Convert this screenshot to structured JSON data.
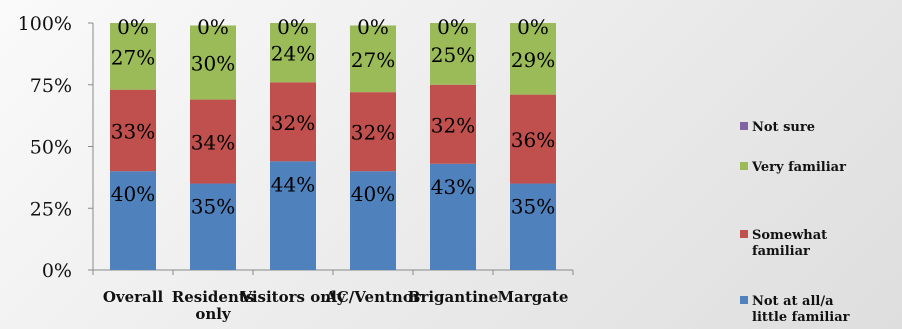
{
  "chart_data": {
    "type": "bar",
    "stacked": true,
    "categories": [
      "Overall",
      [
        "Residents",
        "only"
      ],
      "Visitors only",
      "AC/Ventnor",
      "Brigantine",
      "Margate"
    ],
    "y_ticks": [
      "0%",
      "25%",
      "50%",
      "75%",
      "100%"
    ],
    "ylim": [
      0,
      100
    ],
    "series": [
      {
        "name": [
          "Not at all/a",
          "little familiar"
        ],
        "color": "#4F81BD",
        "values": [
          40,
          35,
          44,
          40,
          43,
          35
        ],
        "labels": [
          "40%",
          "35%",
          "44%",
          "40%",
          "43%",
          "35%"
        ]
      },
      {
        "name": [
          "Somewhat",
          "familiar"
        ],
        "color": "#C0504D",
        "values": [
          33,
          34,
          32,
          32,
          32,
          36
        ],
        "labels": [
          "33%",
          "34%",
          "32%",
          "32%",
          "32%",
          "36%"
        ]
      },
      {
        "name": [
          "Very familiar"
        ],
        "color": "#9BBB59",
        "values": [
          27,
          30,
          24,
          27,
          25,
          29
        ],
        "labels": [
          "27%",
          "30%",
          "24%",
          "27%",
          "25%",
          "29%"
        ]
      },
      {
        "name": [
          "Not sure"
        ],
        "color": "#8064A2",
        "values": [
          0,
          0,
          0,
          0,
          0,
          0
        ],
        "labels": [
          "0%",
          "0%",
          "0%",
          "0%",
          "0%",
          "0%"
        ]
      }
    ],
    "legend_position": "right",
    "grid": false
  }
}
